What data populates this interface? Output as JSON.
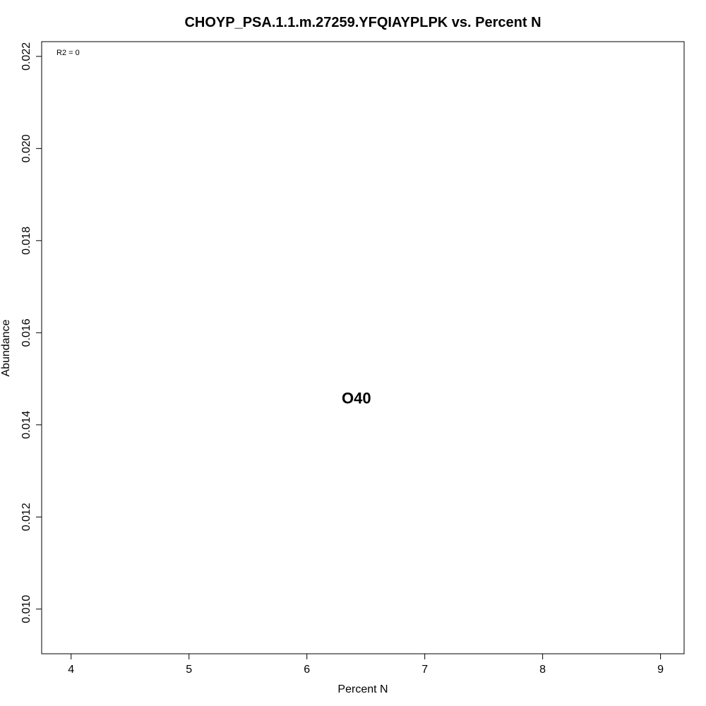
{
  "chart_data": {
    "type": "scatter",
    "title": "CHOYP_PSA.1.1.m.27259.YFQIAYPLPK vs. Percent N",
    "xlabel": "Percent N",
    "ylabel": "Abundance",
    "xlim": [
      3.75,
      9.2
    ],
    "ylim": [
      0.00903,
      0.02232
    ],
    "x_ticks": [
      4,
      5,
      6,
      7,
      8,
      9
    ],
    "x_tick_labels": [
      "4",
      "5",
      "6",
      "7",
      "8",
      "9"
    ],
    "y_ticks": [
      0.01,
      0.012,
      0.014,
      0.016,
      0.018,
      0.02,
      0.022
    ],
    "y_tick_labels": [
      "0.010",
      "0.012",
      "0.014",
      "0.016",
      "0.018",
      "0.020",
      "0.022"
    ],
    "annotation": "R2 = 0",
    "points": [
      {
        "x": 6.42,
        "y": 0.01455,
        "label": "O40"
      }
    ],
    "grid": false,
    "colors": {
      "text": "#000000",
      "axis": "#000000",
      "background": "#ffffff"
    }
  }
}
